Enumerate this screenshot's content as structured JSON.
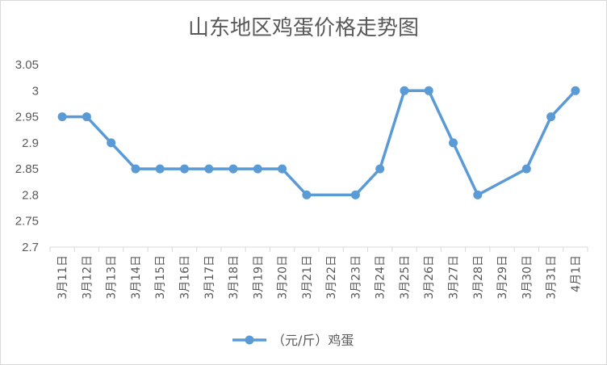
{
  "chart_data": {
    "type": "line",
    "title": "山东地区鸡蛋价格走势图",
    "categories": [
      "3月11日",
      "3月12日",
      "3月13日",
      "3月14日",
      "3月15日",
      "3月16日",
      "3月17日",
      "3月18日",
      "3月19日",
      "3月20日",
      "3月21日",
      "3月22日",
      "3月23日",
      "3月24日",
      "3月25日",
      "3月26日",
      "3月27日",
      "3月28日",
      "3月29日",
      "3月30日",
      "3月31日",
      "4月1日"
    ],
    "series": [
      {
        "name": "（元/斤）鸡蛋",
        "color": "#5b9bd5",
        "values": [
          2.95,
          2.95,
          2.9,
          2.85,
          2.85,
          2.85,
          2.85,
          2.85,
          2.85,
          2.85,
          2.8,
          null,
          2.8,
          2.85,
          3.0,
          3.0,
          2.9,
          2.8,
          null,
          2.85,
          2.95,
          3.0
        ]
      }
    ],
    "y_ticks": [
      "2.7",
      "2.75",
      "2.8",
      "2.85",
      "2.9",
      "2.95",
      "3",
      "3.05"
    ],
    "ylim": [
      2.7,
      3.05
    ],
    "grid": false,
    "legend_position": "bottom"
  }
}
